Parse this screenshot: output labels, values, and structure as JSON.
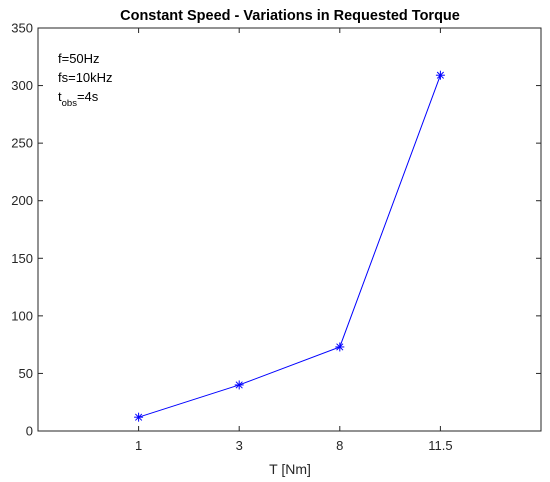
{
  "chart_data": {
    "type": "line",
    "title": "Constant Speed - Variations in Requested Torque",
    "xlabel": "T [Nm]",
    "ylabel": "",
    "categories": [
      "1",
      "3",
      "8",
      "11.5"
    ],
    "values": [
      12,
      40,
      73,
      309
    ],
    "ylim": [
      0,
      350
    ],
    "yticks": [
      "0",
      "50",
      "100",
      "150",
      "200",
      "250",
      "300",
      "350"
    ],
    "grid": false,
    "marker": "asterisk",
    "line_color": "#0000ff",
    "annotations": {
      "line1": "f=50Hz",
      "line2": "fs=10kHz",
      "line3_base": "t",
      "line3_sub": "obs",
      "line3_rest": "=4s"
    }
  }
}
